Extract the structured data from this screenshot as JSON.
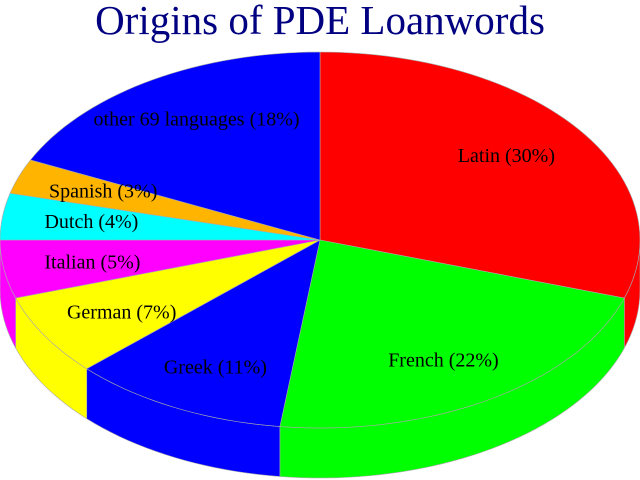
{
  "chart_data": {
    "type": "pie",
    "style": "3d",
    "title": "Origins of PDE Loanwords",
    "start": "top",
    "direction": "clockwise",
    "slices": [
      {
        "label": "Latin (30%)",
        "value": 30,
        "color": "#ff0000"
      },
      {
        "label": "French (22%)",
        "value": 22,
        "color": "#00ff00"
      },
      {
        "label": "Greek (11%)",
        "value": 11,
        "color": "#0000ff"
      },
      {
        "label": "German (7%)",
        "value": 7,
        "color": "#ffff00"
      },
      {
        "label": "Italian (5%)",
        "value": 5,
        "color": "#ff00ff"
      },
      {
        "label": "Dutch (4%)",
        "value": 4,
        "color": "#00ffff"
      },
      {
        "label": "Spanish (3%)",
        "value": 3,
        "color": "#ffb400"
      },
      {
        "label": "other 69 languages (18%)",
        "value": 18,
        "color": "#0000ff"
      }
    ],
    "title_color": "#000080"
  }
}
